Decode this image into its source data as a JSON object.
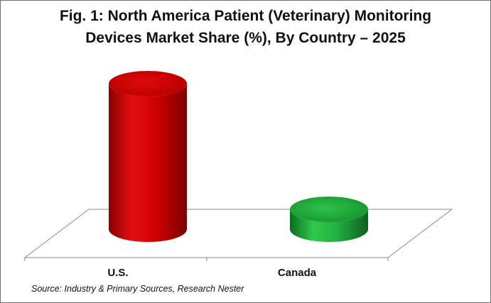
{
  "chart_data": {
    "type": "bar",
    "title_lines": [
      "Fig. 1: North America Patient (Veterinary) Monitoring",
      "Devices Market Share (%), By Country – 2025"
    ],
    "categories": [
      "U.S.",
      "Canada"
    ],
    "values": [
      88,
      12
    ],
    "colors": [
      "#d40000",
      "#1fa83c"
    ],
    "ylim": [
      0,
      100
    ],
    "xlabel": "",
    "ylabel": "",
    "grid": false,
    "legend": "none",
    "style": "3d-cylinder"
  },
  "source_note": "Source: Industry & Primary Sources, Research Nester"
}
